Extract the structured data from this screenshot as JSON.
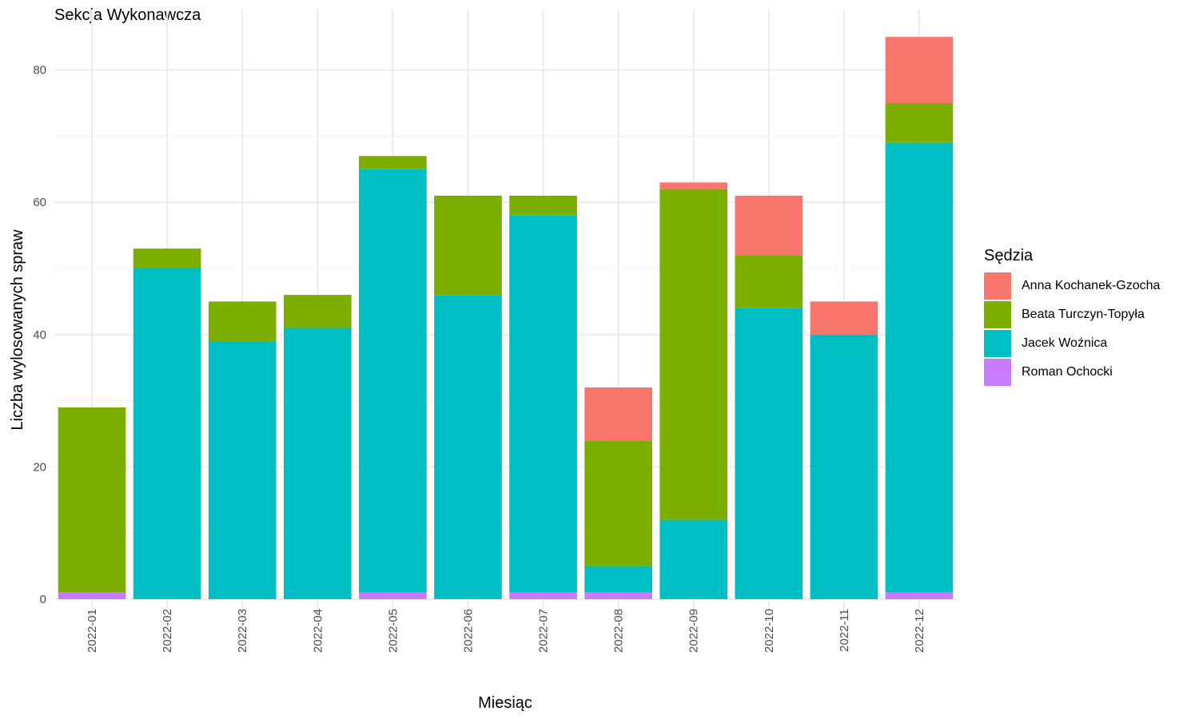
{
  "chart_data": {
    "type": "bar",
    "stacked": true,
    "title": "Sekcja Wykonawcza",
    "xlabel": "Miesiąc",
    "ylabel": "Liczba wylosowanych spraw",
    "ylim": [
      -3,
      88
    ],
    "yticks": [
      0,
      20,
      40,
      60,
      80
    ],
    "grid": true,
    "legend_title": "Sędzia",
    "legend_position": "right",
    "categories": [
      "2022-01",
      "2022-02",
      "2022-03",
      "2022-04",
      "2022-05",
      "2022-06",
      "2022-07",
      "2022-08",
      "2022-09",
      "2022-10",
      "2022-11",
      "2022-12"
    ],
    "series": [
      {
        "name": "Anna Kochanek-Gzocha",
        "color": "#F8766D",
        "values": [
          0,
          0,
          0,
          0,
          0,
          0,
          0,
          8,
          1,
          9,
          5,
          10
        ]
      },
      {
        "name": "Beata Turczyn-Topyła",
        "color": "#7CAE00",
        "values": [
          28,
          3,
          6,
          5,
          2,
          15,
          3,
          19,
          50,
          8,
          0,
          6
        ]
      },
      {
        "name": "Jacek Woźnica",
        "color": "#00BFC4",
        "values": [
          0,
          50,
          39,
          41,
          64,
          46,
          57,
          4,
          12,
          44,
          40,
          68
        ]
      },
      {
        "name": "Roman Ochocki",
        "color": "#C77CFF",
        "values": [
          1,
          0,
          0,
          0,
          1,
          0,
          1,
          1,
          0,
          0,
          0,
          1
        ]
      }
    ]
  }
}
